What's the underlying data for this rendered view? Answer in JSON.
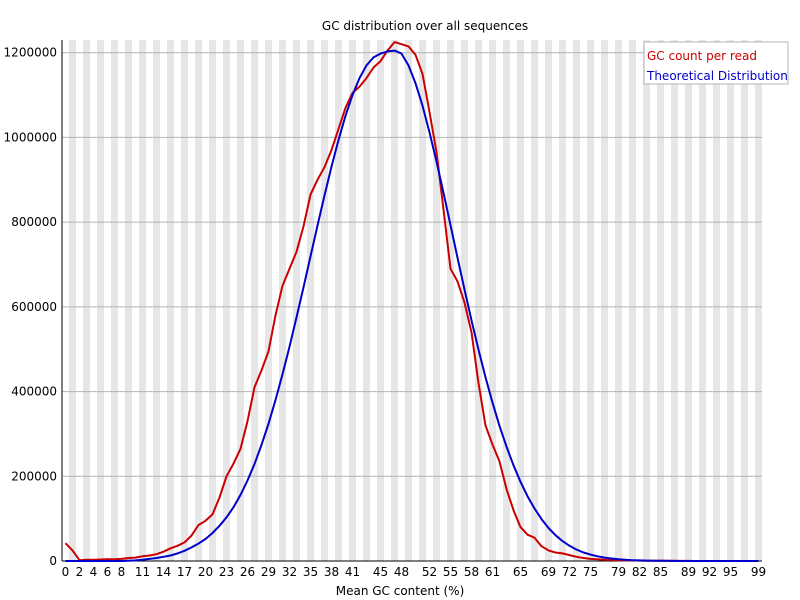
{
  "chart_data": {
    "type": "line",
    "title": "GC distribution over all sequences",
    "xlabel": "Mean GC content (%)",
    "ylabel": "",
    "xlim": [
      0,
      100
    ],
    "ylim": [
      0,
      1230000
    ],
    "grid": "vertical alternating bands, horizontal gridlines",
    "legend_position": "top-right",
    "x_tick_labels": [
      "0",
      "2",
      "4",
      "6",
      "8",
      "11",
      "14",
      "17",
      "20",
      "23",
      "26",
      "29",
      "32",
      "35",
      "38",
      "41",
      "45",
      "48",
      "52",
      "55",
      "58",
      "61",
      "65",
      "69",
      "72",
      "75",
      "79",
      "82",
      "85",
      "89",
      "92",
      "95",
      "99"
    ],
    "y_ticks": [
      0,
      200000,
      400000,
      600000,
      800000,
      1000000,
      1200000
    ],
    "y_tick_labels": [
      "0",
      "200000",
      "400000",
      "600000",
      "800000",
      "1000000",
      "1200000"
    ],
    "series": [
      {
        "name": "GC count per read",
        "color": "#cc0000",
        "points": [
          [
            0,
            42000
          ],
          [
            1,
            25000
          ],
          [
            2,
            2000
          ],
          [
            3,
            3000
          ],
          [
            4,
            3000
          ],
          [
            5,
            3500
          ],
          [
            6,
            4000
          ],
          [
            7,
            4000
          ],
          [
            8,
            5000
          ],
          [
            9,
            7000
          ],
          [
            10,
            8000
          ],
          [
            11,
            11000
          ],
          [
            12,
            13000
          ],
          [
            13,
            16000
          ],
          [
            14,
            22000
          ],
          [
            15,
            30000
          ],
          [
            16,
            36000
          ],
          [
            17,
            44000
          ],
          [
            18,
            60000
          ],
          [
            19,
            85000
          ],
          [
            20,
            95000
          ],
          [
            21,
            110000
          ],
          [
            22,
            150000
          ],
          [
            23,
            200000
          ],
          [
            24,
            230000
          ],
          [
            25,
            265000
          ],
          [
            26,
            330000
          ],
          [
            27,
            410000
          ],
          [
            28,
            450000
          ],
          [
            29,
            495000
          ],
          [
            30,
            580000
          ],
          [
            31,
            650000
          ],
          [
            32,
            690000
          ],
          [
            33,
            730000
          ],
          [
            34,
            790000
          ],
          [
            35,
            865000
          ],
          [
            36,
            900000
          ],
          [
            37,
            930000
          ],
          [
            38,
            970000
          ],
          [
            39,
            1020000
          ],
          [
            40,
            1070000
          ],
          [
            41,
            1105000
          ],
          [
            42,
            1120000
          ],
          [
            43,
            1140000
          ],
          [
            44,
            1165000
          ],
          [
            45,
            1180000
          ],
          [
            46,
            1205000
          ],
          [
            47,
            1225000
          ],
          [
            48,
            1220000
          ],
          [
            49,
            1215000
          ],
          [
            50,
            1195000
          ],
          [
            51,
            1150000
          ],
          [
            52,
            1060000
          ],
          [
            53,
            965000
          ],
          [
            54,
            830000
          ],
          [
            55,
            690000
          ],
          [
            56,
            660000
          ],
          [
            57,
            610000
          ],
          [
            58,
            540000
          ],
          [
            59,
            420000
          ],
          [
            60,
            320000
          ],
          [
            61,
            275000
          ],
          [
            62,
            235000
          ],
          [
            63,
            170000
          ],
          [
            64,
            120000
          ],
          [
            65,
            80000
          ],
          [
            66,
            62000
          ],
          [
            67,
            55000
          ],
          [
            68,
            35000
          ],
          [
            69,
            25000
          ],
          [
            70,
            20000
          ],
          [
            71,
            18000
          ],
          [
            72,
            14000
          ],
          [
            73,
            10000
          ],
          [
            74,
            7000
          ],
          [
            75,
            5000
          ],
          [
            76,
            4000
          ],
          [
            77,
            3000
          ],
          [
            78,
            2500
          ],
          [
            79,
            2000
          ],
          [
            80,
            1500
          ],
          [
            81,
            1200
          ],
          [
            82,
            1000
          ],
          [
            83,
            800
          ],
          [
            84,
            600
          ],
          [
            85,
            500
          ],
          [
            86,
            400
          ],
          [
            87,
            300
          ],
          [
            88,
            200
          ],
          [
            89,
            200
          ],
          [
            90,
            100
          ],
          [
            91,
            100
          ],
          [
            92,
            100
          ],
          [
            93,
            100
          ],
          [
            94,
            100
          ],
          [
            95,
            100
          ],
          [
            96,
            100
          ],
          [
            97,
            100
          ],
          [
            98,
            100
          ],
          [
            99,
            100
          ]
        ]
      },
      {
        "name": "Theoretical Distribution",
        "color": "#0000cc",
        "points": [
          [
            0,
            0
          ],
          [
            1,
            0
          ],
          [
            2,
            0
          ],
          [
            3,
            0
          ],
          [
            4,
            0
          ],
          [
            5,
            0
          ],
          [
            6,
            0
          ],
          [
            7,
            0
          ],
          [
            8,
            0
          ],
          [
            9,
            800
          ],
          [
            10,
            1500
          ],
          [
            11,
            3000
          ],
          [
            12,
            5000
          ],
          [
            13,
            7000
          ],
          [
            14,
            10000
          ],
          [
            15,
            13000
          ],
          [
            16,
            18000
          ],
          [
            17,
            24000
          ],
          [
            18,
            32000
          ],
          [
            19,
            41000
          ],
          [
            20,
            52000
          ],
          [
            21,
            66000
          ],
          [
            22,
            83000
          ],
          [
            23,
            103000
          ],
          [
            24,
            127000
          ],
          [
            25,
            156000
          ],
          [
            26,
            190000
          ],
          [
            27,
            229000
          ],
          [
            28,
            274000
          ],
          [
            29,
            324000
          ],
          [
            30,
            380000
          ],
          [
            31,
            441000
          ],
          [
            32,
            506000
          ],
          [
            33,
            575000
          ],
          [
            34,
            646000
          ],
          [
            35,
            719000
          ],
          [
            36,
            792000
          ],
          [
            37,
            863000
          ],
          [
            38,
            931000
          ],
          [
            39,
            994000
          ],
          [
            40,
            1051000
          ],
          [
            41,
            1100000
          ],
          [
            42,
            1140000
          ],
          [
            43,
            1170000
          ],
          [
            44,
            1189000
          ],
          [
            45,
            1198000
          ],
          [
            46,
            1203000
          ],
          [
            47,
            1205000
          ],
          [
            48,
            1198000
          ],
          [
            49,
            1170000
          ],
          [
            50,
            1128000
          ],
          [
            51,
            1075000
          ],
          [
            52,
            1012000
          ],
          [
            53,
            943000
          ],
          [
            54,
            869000
          ],
          [
            55,
            793000
          ],
          [
            56,
            716000
          ],
          [
            57,
            641000
          ],
          [
            58,
            568000
          ],
          [
            59,
            499000
          ],
          [
            60,
            434000
          ],
          [
            61,
            374000
          ],
          [
            62,
            319000
          ],
          [
            63,
            270000
          ],
          [
            64,
            226000
          ],
          [
            65,
            187000
          ],
          [
            66,
            153000
          ],
          [
            67,
            124000
          ],
          [
            68,
            99000
          ],
          [
            69,
            78000
          ],
          [
            70,
            61000
          ],
          [
            71,
            47000
          ],
          [
            72,
            36000
          ],
          [
            73,
            27000
          ],
          [
            74,
            20000
          ],
          [
            75,
            15000
          ],
          [
            76,
            11000
          ],
          [
            77,
            8000
          ],
          [
            78,
            6000
          ],
          [
            79,
            4000
          ],
          [
            80,
            3000
          ],
          [
            81,
            2000
          ],
          [
            82,
            1500
          ],
          [
            83,
            1000
          ],
          [
            84,
            700
          ],
          [
            85,
            500
          ],
          [
            86,
            300
          ],
          [
            87,
            200
          ],
          [
            88,
            100
          ],
          [
            89,
            100
          ],
          [
            90,
            0
          ],
          [
            91,
            0
          ],
          [
            92,
            0
          ],
          [
            93,
            0
          ],
          [
            94,
            0
          ],
          [
            95,
            0
          ],
          [
            96,
            0
          ],
          [
            97,
            0
          ],
          [
            98,
            0
          ],
          [
            99,
            0
          ]
        ]
      }
    ]
  }
}
